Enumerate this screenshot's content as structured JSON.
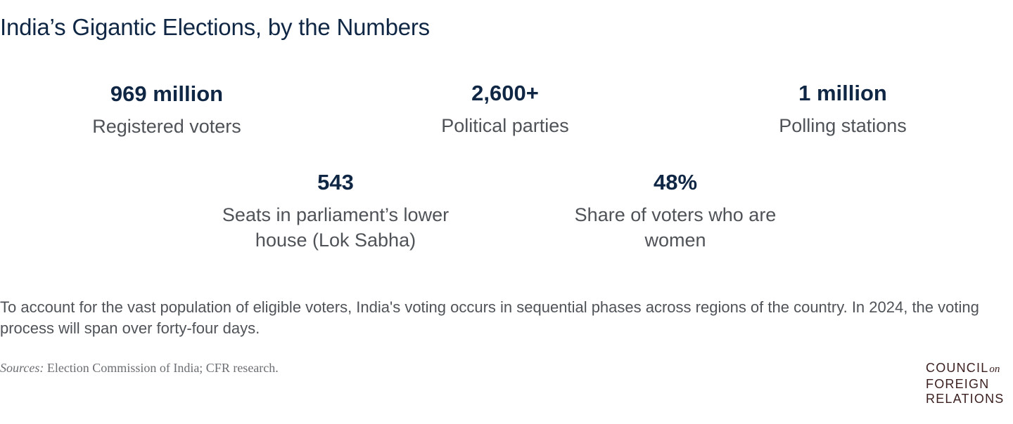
{
  "title": "India’s Gigantic Elections, by the Numbers",
  "stats": [
    {
      "value": "969 million",
      "label": "Registered voters"
    },
    {
      "value": "2,600+",
      "label": "Political parties"
    },
    {
      "value": "1 million",
      "label": "Polling stations"
    },
    {
      "value": "543",
      "label": "Seats in parliament’s lower house (Lok Sabha)"
    },
    {
      "value": "48%",
      "label": "Share of voters who are women"
    }
  ],
  "note": "To account for the vast population of eligible voters, India's voting occurs in sequential phases across regions of the country. In 2024, the voting process will span over forty-four days.",
  "sources": {
    "label": "Sources:",
    "text": "Election Commission of India; CFR research."
  },
  "logo": {
    "line1": "COUNCIL",
    "on": "on",
    "line2": "FOREIGN",
    "line3": "RELATIONS"
  },
  "colors": {
    "navy": "#0f2744",
    "gray_text": "#4f5358",
    "logo_brown": "#3b1f1f"
  }
}
